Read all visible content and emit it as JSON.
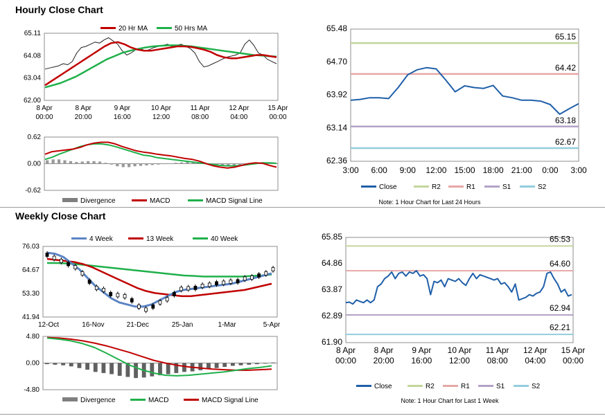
{
  "sections": {
    "hourly_title": "Hourly Close Chart",
    "weekly_title": "Weekly Close Chart"
  },
  "colors": {
    "ma_short": "#c00000",
    "ma_long": "#1fb04a",
    "close": "#1f5fa8",
    "r2": "#c3d69b",
    "r1": "#e6a7a7",
    "s1": "#b3a2c7",
    "s2": "#93cddd",
    "four_week": "#5b84c4",
    "hist": "#7f7f7f"
  },
  "chart_data": [
    {
      "id": "hourly_price",
      "type": "line",
      "ylim": [
        62.0,
        65.11
      ],
      "yticks": [
        "65.11",
        "64.08",
        "63.04",
        "62.00"
      ],
      "xticks": [
        [
          "8 Apr",
          "00:00"
        ],
        [
          "8 Apr",
          "20:00"
        ],
        [
          "9 Apr",
          "16:00"
        ],
        [
          "10 Apr",
          "12:00"
        ],
        [
          "11 Apr",
          "08:00"
        ],
        [
          "12 Apr",
          "04:00"
        ],
        [
          "15 Apr",
          "00:00"
        ]
      ],
      "legend": [
        "20 Hr MA",
        "50 Hrs MA"
      ],
      "series": [
        {
          "name": "Close",
          "values": [
            63.45,
            63.5,
            63.55,
            63.6,
            63.7,
            63.65,
            63.8,
            64.2,
            64.45,
            64.5,
            64.6,
            64.7,
            64.65,
            64.8,
            64.9,
            64.75,
            64.6,
            64.3,
            64.1,
            64.2,
            64.35,
            64.4,
            64.3,
            64.35,
            64.45,
            64.5,
            64.55,
            64.6,
            64.5,
            64.55,
            64.6,
            64.5,
            64.4,
            64.2,
            63.8,
            63.55,
            63.6,
            63.7,
            63.8,
            63.9,
            64.0,
            64.05,
            64.1,
            64.2,
            64.6,
            64.8,
            64.55,
            64.2,
            64.1,
            63.9,
            63.8,
            63.7
          ]
        },
        {
          "name": "20 Hr MA",
          "values": [
            62.7,
            62.9,
            63.1,
            63.3,
            63.5,
            63.7,
            63.9,
            64.1,
            64.3,
            64.5,
            64.65,
            64.7,
            64.6,
            64.45,
            64.35,
            64.3,
            64.3,
            64.35,
            64.4,
            64.45,
            64.5,
            64.5,
            64.48,
            64.42,
            64.35,
            64.25,
            64.1,
            64.0,
            63.95,
            63.95,
            64.0,
            64.05,
            64.1,
            64.1,
            64.05,
            64.0
          ]
        },
        {
          "name": "50 Hrs MA",
          "values": [
            62.6,
            62.7,
            62.8,
            62.95,
            63.1,
            63.3,
            63.5,
            63.7,
            63.9,
            64.05,
            64.2,
            64.3,
            64.38,
            64.45,
            64.5,
            64.53,
            64.55,
            64.55,
            64.53,
            64.5,
            64.45,
            64.4,
            64.35,
            64.3,
            64.25,
            64.2,
            64.15,
            64.1,
            64.08,
            64.05,
            64.03
          ]
        }
      ]
    },
    {
      "id": "hourly_macd",
      "type": "line",
      "ylim": [
        -0.62,
        0.62
      ],
      "yticks": [
        "0.62",
        "0.00",
        "-0.62"
      ],
      "legend": [
        "Divergence",
        "MACD",
        "MACD Signal Line"
      ],
      "series": [
        {
          "name": "MACD",
          "values": [
            0.22,
            0.28,
            0.3,
            0.32,
            0.34,
            0.38,
            0.44,
            0.48,
            0.5,
            0.5,
            0.46,
            0.4,
            0.35,
            0.3,
            0.27,
            0.25,
            0.22,
            0.2,
            0.18,
            0.15,
            0.12,
            0.1,
            0.06,
            0.0,
            -0.05,
            -0.08,
            -0.1,
            -0.08,
            -0.04,
            0.0,
            0.02,
            0.01,
            -0.04,
            -0.08
          ]
        },
        {
          "name": "MACD Signal Line",
          "values": [
            0.1,
            0.15,
            0.22,
            0.28,
            0.34,
            0.4,
            0.44,
            0.46,
            0.46,
            0.44,
            0.4,
            0.35,
            0.3,
            0.25,
            0.2,
            0.18,
            0.14,
            0.12,
            0.1,
            0.08,
            0.06,
            0.04,
            0.02,
            0.0,
            -0.02,
            -0.04,
            -0.05,
            -0.05,
            -0.04,
            -0.02,
            0.0,
            0.02,
            0.02,
            0.01
          ]
        },
        {
          "name": "Divergence",
          "values": [
            0.08,
            0.1,
            0.1,
            0.08,
            0.06,
            0.04,
            0.05,
            0.06,
            0.06,
            0.05,
            0.02,
            -0.02,
            -0.06,
            -0.08,
            -0.08,
            -0.06,
            -0.05,
            -0.04,
            -0.03,
            -0.02,
            -0.01,
            0.0,
            0.02,
            0.03,
            0.04,
            0.04,
            0.03,
            0.01,
            -0.02,
            -0.04,
            -0.05,
            -0.06,
            -0.05,
            -0.03,
            -0.01,
            0.01,
            0.02,
            0.03,
            0.02,
            0.0
          ]
        }
      ]
    },
    {
      "id": "hourly_24h",
      "type": "line",
      "ylim": [
        62.36,
        65.48
      ],
      "yticks": [
        "65.48",
        "64.70",
        "63.92",
        "63.14",
        "62.36"
      ],
      "xticks": [
        "3:00",
        "6:00",
        "9:00",
        "12:00",
        "15:00",
        "18:00",
        "21:00",
        "0:00",
        "3:00"
      ],
      "series": [
        {
          "name": "Close",
          "values": [
            63.8,
            63.82,
            63.86,
            63.86,
            63.84,
            64.1,
            64.4,
            64.52,
            64.57,
            64.54,
            64.28,
            64.0,
            64.14,
            64.1,
            64.08,
            64.15,
            63.9,
            63.86,
            63.8,
            63.8,
            63.78,
            63.7,
            63.47,
            63.6,
            63.72
          ]
        }
      ],
      "levels": [
        {
          "name": "R2",
          "value": 65.15,
          "label": "65.15"
        },
        {
          "name": "R1",
          "value": 64.42,
          "label": "64.42"
        },
        {
          "name": "S1",
          "value": 63.18,
          "label": "63.18"
        },
        {
          "name": "S2",
          "value": 62.67,
          "label": "62.67"
        }
      ],
      "legend": [
        "Close",
        "R2",
        "R1",
        "S1",
        "S2"
      ],
      "note": "Note: 1 Hour Chart for Last 24 Hours"
    },
    {
      "id": "weekly_price",
      "type": "line",
      "ylim": [
        41.94,
        76.03
      ],
      "yticks": [
        "76.03",
        "64.67",
        "53.30",
        "41.94"
      ],
      "xticks": [
        "12-Oct",
        "16-Nov",
        "21-Dec",
        "25-Jan",
        "1-Mar",
        "5-Apr"
      ],
      "legend": [
        "4 Week",
        "13 Week",
        "40 Week"
      ],
      "candles": [
        72.0,
        70.5,
        69.0,
        67.5,
        66.0,
        63.0,
        59.0,
        56.0,
        55.0,
        53.0,
        52.5,
        52.0,
        50.0,
        47.0,
        45.5,
        47.0,
        49.0,
        50.5,
        53.0,
        55.5,
        55.8,
        56.0,
        57.0,
        57.5,
        58.2,
        58.5,
        59.0,
        59.2,
        60.5,
        61.0,
        62.0,
        63.0,
        65.0
      ],
      "series": [
        {
          "name": "4 Week",
          "values": [
            73.0,
            72.5,
            71.0,
            68.0,
            65.0,
            61.0,
            57.0,
            54.0,
            51.0,
            49.0,
            48.0,
            47.0,
            47.0,
            48.0,
            50.0,
            52.0,
            54.0,
            55.0,
            55.5,
            56.0,
            56.5,
            57.0,
            57.5,
            58.0,
            59.0,
            60.0,
            61.0,
            62.0,
            63.0
          ]
        },
        {
          "name": "13 Week",
          "values": [
            70.0,
            69.5,
            69.0,
            68.5,
            67.5,
            66.0,
            64.0,
            62.0,
            60.0,
            58.0,
            56.0,
            54.5,
            53.5,
            53.0,
            52.5,
            52.0,
            52.0,
            52.5,
            53.0,
            53.5,
            54.0,
            54.5,
            55.0,
            56.0,
            57.0,
            58.0
          ]
        },
        {
          "name": "40 Week",
          "values": [
            68.0,
            68.0,
            67.8,
            67.5,
            67.0,
            66.5,
            66.0,
            65.5,
            65.0,
            64.5,
            64.0,
            63.5,
            63.0,
            62.5,
            62.0,
            61.8,
            61.5,
            61.5,
            61.5,
            61.5,
            61.5,
            61.8,
            62.0,
            62.5
          ]
        }
      ]
    },
    {
      "id": "weekly_macd",
      "type": "line",
      "ylim": [
        -4.8,
        4.8
      ],
      "yticks": [
        "4.80",
        "0.00",
        "-4.80"
      ],
      "legend": [
        "Divergence",
        "MACD",
        "MACD Signal Line"
      ],
      "series": [
        {
          "name": "MACD",
          "values": [
            4.5,
            4.3,
            4.0,
            3.5,
            2.8,
            1.8,
            0.7,
            -0.4,
            -1.2,
            -1.8,
            -2.2,
            -2.3,
            -2.2,
            -2.0,
            -1.8,
            -1.6,
            -1.3,
            -1.0,
            -0.8,
            -0.5
          ]
        },
        {
          "name": "MACD Signal Line",
          "values": [
            4.6,
            4.5,
            4.3,
            4.0,
            3.6,
            3.1,
            2.5,
            1.9,
            1.2,
            0.5,
            0.0,
            -0.4,
            -0.7,
            -0.9,
            -1.1,
            -1.2,
            -1.3,
            -1.3,
            -1.2,
            -1.1
          ]
        },
        {
          "name": "Divergence",
          "values": [
            -0.2,
            -0.3,
            -0.4,
            -0.6,
            -0.9,
            -1.2,
            -1.6,
            -1.8,
            -2.0,
            -2.3,
            -2.5,
            -2.7,
            -2.6,
            -2.4,
            -2.2,
            -2.0,
            -1.8,
            -1.6,
            -1.5,
            -1.3,
            -1.1,
            -0.9,
            -0.7,
            -0.5,
            -0.4,
            -0.3,
            -0.2,
            -0.1,
            0.1
          ]
        }
      ]
    },
    {
      "id": "weekly_hourly",
      "type": "line",
      "ylim": [
        61.9,
        65.85
      ],
      "yticks": [
        "65.85",
        "64.86",
        "63.87",
        "62.89",
        "61.90"
      ],
      "xticks": [
        [
          "8 Apr",
          "00:00"
        ],
        [
          "8 Apr",
          "20:00"
        ],
        [
          "9 Apr",
          "16:00"
        ],
        [
          "10 Apr",
          "12:00"
        ],
        [
          "11 Apr",
          "08:00"
        ],
        [
          "12 Apr",
          "04:00"
        ],
        [
          "15 Apr",
          "00:00"
        ]
      ],
      "series": [
        {
          "name": "Close",
          "values": [
            63.4,
            63.42,
            63.35,
            63.5,
            63.45,
            63.4,
            63.5,
            63.4,
            63.5,
            64.0,
            64.1,
            64.3,
            64.4,
            64.55,
            64.3,
            64.5,
            64.55,
            64.4,
            64.55,
            64.5,
            64.6,
            64.4,
            64.45,
            64.3,
            63.7,
            64.2,
            64.15,
            64.25,
            64.0,
            64.3,
            64.25,
            64.2,
            64.3,
            64.15,
            64.05,
            64.3,
            64.5,
            64.3,
            64.45,
            64.4,
            64.35,
            64.3,
            64.25,
            64.3,
            64.1,
            64.15,
            64.0,
            63.8,
            64.1,
            63.5,
            63.55,
            63.6,
            63.7,
            63.65,
            63.75,
            63.8,
            64.0,
            64.5,
            64.55,
            64.3,
            64.1,
            63.8,
            63.9,
            63.65,
            63.7
          ]
        }
      ],
      "levels": [
        {
          "name": "R2",
          "value": 65.53,
          "label": "65.53"
        },
        {
          "name": "R1",
          "value": 64.6,
          "label": "64.60"
        },
        {
          "name": "S1",
          "value": 62.94,
          "label": "62.94"
        },
        {
          "name": "S2",
          "value": 62.21,
          "label": "62.21"
        }
      ],
      "legend": [
        "Close",
        "R2",
        "R1",
        "S1",
        "S2"
      ],
      "note": "Note: 1 Hour Chart for Last 1 Week"
    }
  ]
}
